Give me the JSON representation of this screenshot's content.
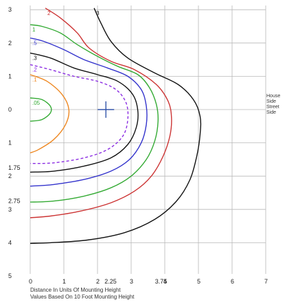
{
  "chart_data": {
    "type": "line",
    "chart_kind": "isofootcandle plot",
    "title": "",
    "xlabel": "Distance In Units Of Mounting Height",
    "caption": "Values Based On 10 Foot Mounting Height",
    "side_labels": [
      "House",
      "Side",
      "Street",
      "Side"
    ],
    "x_ticks": [
      {
        "value": 0,
        "label": "0"
      },
      {
        "value": 1,
        "label": "1"
      },
      {
        "value": 2,
        "label": "2"
      },
      {
        "value": 2.25,
        "label": "2.25"
      },
      {
        "value": 3,
        "label": "3"
      },
      {
        "value": 3.75,
        "label": "3.75"
      },
      {
        "value": 4,
        "label": "4"
      },
      {
        "value": 5,
        "label": "5"
      },
      {
        "value": 6,
        "label": "6"
      },
      {
        "value": 7,
        "label": "7"
      }
    ],
    "y_ticks": [
      {
        "value": 3,
        "label": "3"
      },
      {
        "value": 2,
        "label": "2"
      },
      {
        "value": 1,
        "label": "1"
      },
      {
        "value": 0,
        "label": "0"
      },
      {
        "value": -1,
        "label": "1"
      },
      {
        "value": -1.75,
        "label": "1.75"
      },
      {
        "value": -2,
        "label": "2"
      },
      {
        "value": -2.75,
        "label": "2.75"
      },
      {
        "value": -3,
        "label": "3"
      },
      {
        "value": -4,
        "label": "4"
      },
      {
        "value": -5,
        "label": "5"
      }
    ],
    "xlim": [
      0,
      7
    ],
    "ylim": [
      -5,
      3
    ],
    "grid": true,
    "grid_x": [
      0,
      1,
      2,
      3,
      4,
      5,
      6,
      7
    ],
    "grid_y": [
      3,
      2,
      1,
      0,
      -1,
      -2,
      -3,
      -4
    ],
    "grid_color": "#b8b8b8",
    "luminaire": {
      "x": 2.25,
      "y": 0
    },
    "series": [
      {
        "label": "3",
        "color": "#111111",
        "dash": false,
        "points": [
          [
            1.9,
            3.05
          ],
          [
            2.1,
            2.6
          ],
          [
            2.4,
            2.05
          ],
          [
            2.9,
            1.55
          ],
          [
            3.7,
            1.1
          ],
          [
            4.4,
            0.75
          ],
          [
            4.85,
            0.3
          ],
          [
            5.05,
            -0.2
          ],
          [
            5.05,
            -0.75
          ],
          [
            4.95,
            -1.4
          ],
          [
            4.75,
            -2.1
          ],
          [
            4.35,
            -2.75
          ],
          [
            3.7,
            -3.3
          ],
          [
            2.8,
            -3.7
          ],
          [
            1.7,
            -3.92
          ],
          [
            0.6,
            -4.0
          ],
          [
            0,
            -4.02
          ]
        ]
      },
      {
        "label": "2",
        "color": "#cc3333",
        "dash": false,
        "points": [
          [
            0.45,
            3.05
          ],
          [
            0.9,
            2.75
          ],
          [
            1.4,
            2.3
          ],
          [
            1.75,
            1.85
          ],
          [
            2.4,
            1.45
          ],
          [
            3.1,
            1.2
          ],
          [
            3.75,
            0.75
          ],
          [
            4.1,
            0.25
          ],
          [
            4.2,
            -0.25
          ],
          [
            4.15,
            -0.8
          ],
          [
            3.95,
            -1.4
          ],
          [
            3.6,
            -2.0
          ],
          [
            3.1,
            -2.45
          ],
          [
            2.4,
            -2.8
          ],
          [
            1.5,
            -3.05
          ],
          [
            0.6,
            -3.2
          ],
          [
            0,
            -3.25
          ]
        ]
      },
      {
        "label": "1",
        "color": "#33aa33",
        "dash": false,
        "points": [
          [
            0,
            2.55
          ],
          [
            0.35,
            2.5
          ],
          [
            0.9,
            2.3
          ],
          [
            1.4,
            1.95
          ],
          [
            2.0,
            1.6
          ],
          [
            2.6,
            1.3
          ],
          [
            3.2,
            1.05
          ],
          [
            3.55,
            0.65
          ],
          [
            3.75,
            0.15
          ],
          [
            3.8,
            -0.35
          ],
          [
            3.7,
            -0.95
          ],
          [
            3.45,
            -1.5
          ],
          [
            3.0,
            -2.0
          ],
          [
            2.4,
            -2.35
          ],
          [
            1.6,
            -2.6
          ],
          [
            0.7,
            -2.75
          ],
          [
            0,
            -2.78
          ]
        ]
      },
      {
        "label": ".5",
        "color": "#3333cc",
        "dash": false,
        "points": [
          [
            0,
            2.15
          ],
          [
            0.4,
            2.05
          ],
          [
            1.0,
            1.8
          ],
          [
            1.6,
            1.5
          ],
          [
            2.3,
            1.25
          ],
          [
            2.9,
            1.0
          ],
          [
            3.3,
            0.6
          ],
          [
            3.45,
            0.1
          ],
          [
            3.45,
            -0.45
          ],
          [
            3.3,
            -1.0
          ],
          [
            2.95,
            -1.5
          ],
          [
            2.4,
            -1.85
          ],
          [
            1.6,
            -2.1
          ],
          [
            0.7,
            -2.25
          ],
          [
            0,
            -2.3
          ]
        ]
      },
      {
        "label": ".3",
        "color": "#111111",
        "dash": false,
        "points": [
          [
            0,
            1.7
          ],
          [
            0.6,
            1.55
          ],
          [
            1.3,
            1.25
          ],
          [
            2.0,
            1.05
          ],
          [
            2.6,
            0.85
          ],
          [
            3.05,
            0.45
          ],
          [
            3.2,
            -0.05
          ],
          [
            3.15,
            -0.55
          ],
          [
            2.9,
            -1.05
          ],
          [
            2.4,
            -1.45
          ],
          [
            1.6,
            -1.7
          ],
          [
            0.7,
            -1.85
          ],
          [
            0,
            -1.88
          ]
        ]
      },
      {
        "label": ".2",
        "color": "#8a2be2",
        "dash": true,
        "points": [
          [
            0,
            1.35
          ],
          [
            0.6,
            1.2
          ],
          [
            1.3,
            1.0
          ],
          [
            2.0,
            0.85
          ],
          [
            2.55,
            0.6
          ],
          [
            2.85,
            0.2
          ],
          [
            2.9,
            -0.3
          ],
          [
            2.75,
            -0.8
          ],
          [
            2.3,
            -1.2
          ],
          [
            1.6,
            -1.45
          ],
          [
            0.7,
            -1.6
          ],
          [
            0,
            -1.62
          ]
        ]
      },
      {
        "label": ".1",
        "color": "#ee8822",
        "dash": false,
        "points": [
          [
            0,
            1.05
          ],
          [
            0.5,
            0.85
          ],
          [
            0.95,
            0.45
          ],
          [
            1.15,
            0.0
          ],
          [
            1.05,
            -0.45
          ],
          [
            0.7,
            -0.9
          ],
          [
            0.25,
            -1.2
          ],
          [
            0,
            -1.3
          ]
        ]
      },
      {
        "label": ".05",
        "color": "#33aa33",
        "dash": false,
        "points": [
          [
            0,
            0.35
          ],
          [
            0.35,
            0.3
          ],
          [
            0.6,
            0.1
          ],
          [
            0.6,
            -0.1
          ],
          [
            0.35,
            -0.3
          ],
          [
            0,
            -0.35
          ]
        ]
      }
    ]
  }
}
